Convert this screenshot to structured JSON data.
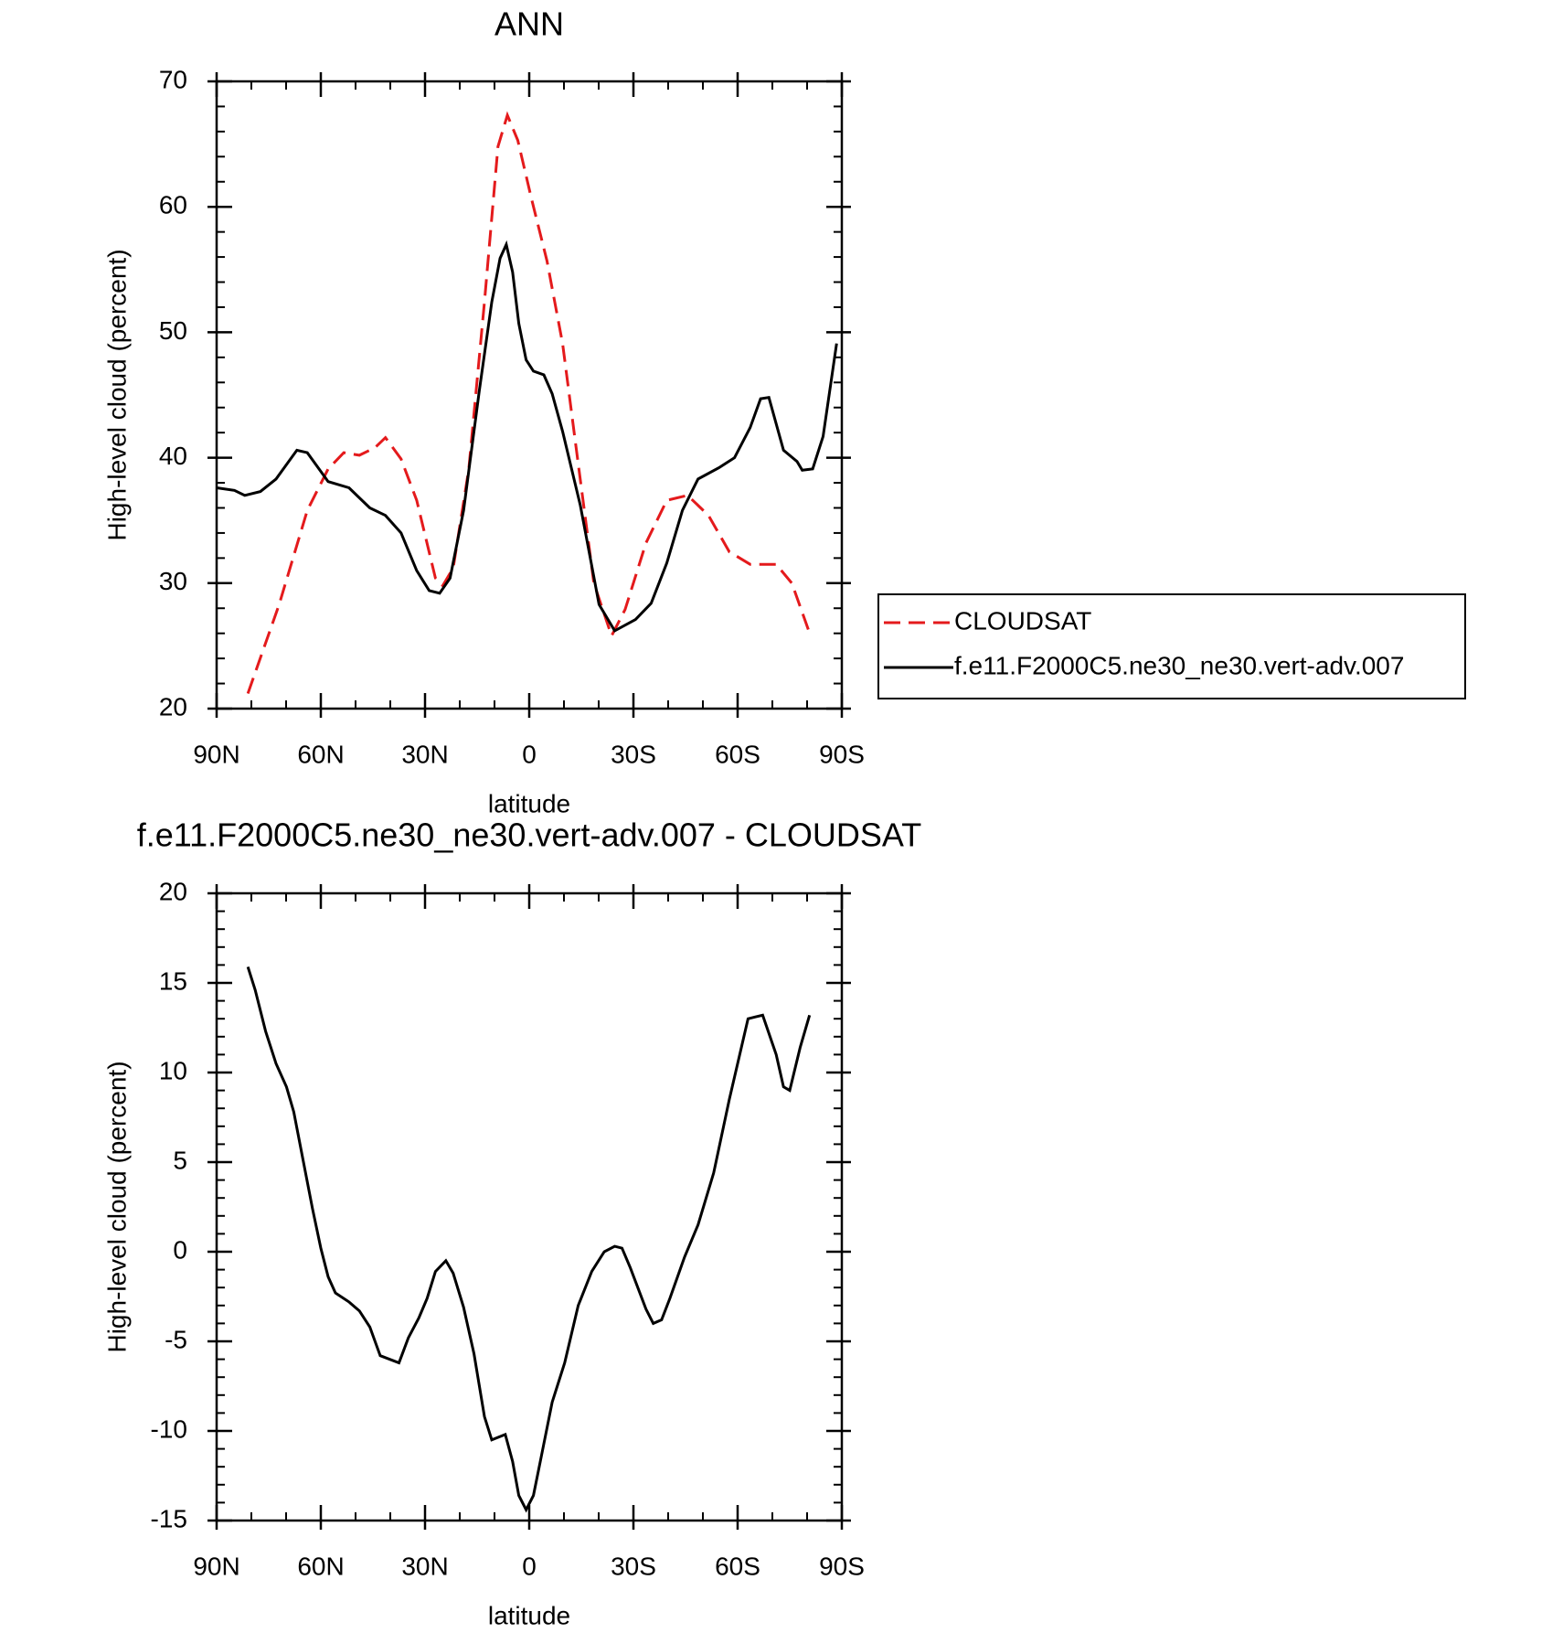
{
  "chart_data": [
    {
      "type": "line",
      "title": "ANN",
      "xlabel": "latitude",
      "ylabel": "High-level cloud (percent)",
      "xlim": [
        90,
        -90
      ],
      "ylim": [
        20,
        70
      ],
      "xticks": [
        {
          "value": 90,
          "label": "90N"
        },
        {
          "value": 60,
          "label": "60N"
        },
        {
          "value": 30,
          "label": "30N"
        },
        0,
        {
          "value": -30,
          "label": "30S"
        },
        {
          "value": -60,
          "label": "60S"
        },
        {
          "value": -90,
          "label": "90S"
        }
      ],
      "yticks": [
        20,
        30,
        40,
        50,
        60,
        70
      ],
      "legend": "outside-right",
      "series": [
        {
          "name": "CLOUDSAT",
          "color": "#e41a1c",
          "dash": true,
          "x": [
            81,
            72,
            63.9,
            57.9,
            53.4,
            48.9,
            44.4,
            41.4,
            36.9,
            32.4,
            27,
            24.9,
            21.9,
            17.4,
            12.9,
            9,
            6.3,
            3.3,
            -0.6,
            -5.1,
            -9.6,
            -13.5,
            -18.6,
            -23.7,
            -27.6,
            -33.6,
            -39.6,
            -45.6,
            -51.6,
            -57.6,
            -63.6,
            -71.1,
            -75.6,
            -81
          ],
          "values": [
            21.2,
            28.3,
            35.8,
            39.1,
            40.4,
            40.2,
            40.8,
            41.6,
            39.9,
            36.6,
            30.4,
            29.8,
            31.2,
            39.1,
            52.4,
            64.8,
            67.3,
            65.3,
            60.7,
            55.7,
            49.1,
            40.8,
            30,
            25.8,
            27.9,
            33.2,
            36.6,
            37,
            35.4,
            32.5,
            31.5,
            31.5,
            30,
            25.8
          ]
        },
        {
          "name": "f.e11.F2000C5.ne30_ne30.vert-adv.007",
          "color": "#000000",
          "dash": false,
          "x": [
            90,
            84.9,
            81.9,
            77.4,
            72.9,
            66.9,
            63.9,
            57.9,
            51.9,
            45.9,
            41.4,
            36.9,
            32.4,
            28.8,
            25.8,
            22.8,
            18.9,
            14.4,
            10.8,
            8.4,
            6.6,
            4.8,
            3,
            0.9,
            -1.2,
            -4.2,
            -6.6,
            -9.6,
            -14.7,
            -20.1,
            -24.6,
            -30.6,
            -35.1,
            -39.6,
            -44.1,
            -48.6,
            -54.6,
            -59.1,
            -63.6,
            -66.6,
            -69,
            -73.2,
            -77.1,
            -78.6,
            -81.6,
            -84.6,
            -88.5
          ],
          "values": [
            37.6,
            37.4,
            37,
            37.3,
            38.3,
            40.6,
            40.4,
            38.1,
            37.6,
            36,
            35.4,
            34,
            31,
            29.4,
            29.2,
            30.4,
            35.8,
            45.3,
            52.4,
            55.9,
            57,
            54.8,
            50.7,
            47.8,
            46.9,
            46.6,
            45.1,
            42.1,
            36.2,
            28.3,
            26.2,
            27.1,
            28.4,
            31.6,
            35.8,
            38.3,
            39.2,
            40,
            42.4,
            44.7,
            44.8,
            40.6,
            39.7,
            39,
            39.1,
            41.7,
            49.1
          ]
        }
      ]
    },
    {
      "type": "line",
      "title": "f.e11.F2000C5.ne30_ne30.vert-adv.007 - CLOUDSAT",
      "xlabel": "latitude",
      "ylabel": "High-level cloud (percent)",
      "xlim": [
        90,
        -90
      ],
      "ylim": [
        -15,
        20
      ],
      "xticks": [
        {
          "value": 90,
          "label": "90N"
        },
        {
          "value": 60,
          "label": "60N"
        },
        {
          "value": 30,
          "label": "30N"
        },
        0,
        {
          "value": -30,
          "label": "30S"
        },
        {
          "value": -60,
          "label": "60S"
        },
        {
          "value": -90,
          "label": "90S"
        }
      ],
      "yticks": [
        -15,
        -10,
        -5,
        0,
        5,
        10,
        15,
        20
      ],
      "series": [
        {
          "color": "#000000",
          "dash": false,
          "x": [
            81,
            78.9,
            75.9,
            72.9,
            69.9,
            67.8,
            65.4,
            62.4,
            60,
            57.9,
            55.8,
            51.9,
            48.9,
            45.9,
            42.9,
            37.5,
            34.8,
            31.8,
            29.4,
            27,
            24,
            21.9,
            18.9,
            15.9,
            12.9,
            10.8,
            6.9,
            4.8,
            3,
            0.9,
            -1.2,
            -3.6,
            -6.6,
            -10.2,
            -14.1,
            -18,
            -21.6,
            -24.6,
            -26.7,
            -29.1,
            -33.6,
            -35.7,
            -38.1,
            -40.5,
            -44.7,
            -48.6,
            -53.1,
            -57.6,
            -63,
            -65.1,
            -67.2,
            -71.1,
            -73.2,
            -75,
            -78,
            -80.7
          ],
          "values": [
            15.9,
            14.6,
            12.3,
            10.5,
            9.2,
            7.8,
            5.4,
            2.4,
            0.2,
            -1.4,
            -2.3,
            -2.8,
            -3.3,
            -4.2,
            -5.8,
            -6.2,
            -4.8,
            -3.7,
            -2.6,
            -1.1,
            -0.5,
            -1.2,
            -3.1,
            -5.7,
            -9.2,
            -10.5,
            -10.2,
            -11.7,
            -13.6,
            -14.4,
            -13.6,
            -11.3,
            -8.4,
            -6.2,
            -3,
            -1.1,
            0,
            0.3,
            0.2,
            -0.9,
            -3.2,
            -4,
            -3.8,
            -2.6,
            -0.3,
            1.5,
            4.4,
            8.5,
            13,
            13.1,
            13.2,
            11,
            9.2,
            9,
            11.4,
            13.2
          ]
        }
      ]
    }
  ]
}
